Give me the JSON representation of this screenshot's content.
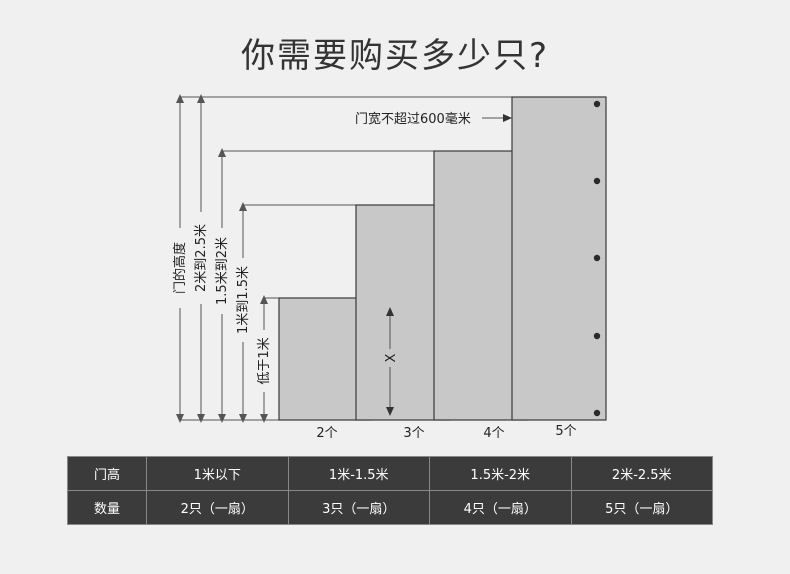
{
  "title": "你需要购买多少只?",
  "door_width_note": "门宽不超过600毫米",
  "height_labels": [
    "门的高度",
    "2米到2.5米",
    "1.5米到2米",
    "1米到1.5米",
    "低于1米"
  ],
  "panel_labels": [
    "2个",
    "3个",
    "4个",
    "5个"
  ],
  "x_label": "X",
  "table": {
    "rows": [
      {
        "header": "门高",
        "cells": [
          "1米以下",
          "1米-1.5米",
          "1.5米-2米",
          "2米-2.5米"
        ]
      },
      {
        "header": "数量",
        "cells": [
          "2只（一扇）",
          "3只（一扇）",
          "4只（一扇）",
          "5只（一扇）"
        ]
      }
    ]
  },
  "colors": {
    "panel": "#c8c8c8",
    "table_bg": "#3b3b3b",
    "background": "#f0f0f0"
  }
}
